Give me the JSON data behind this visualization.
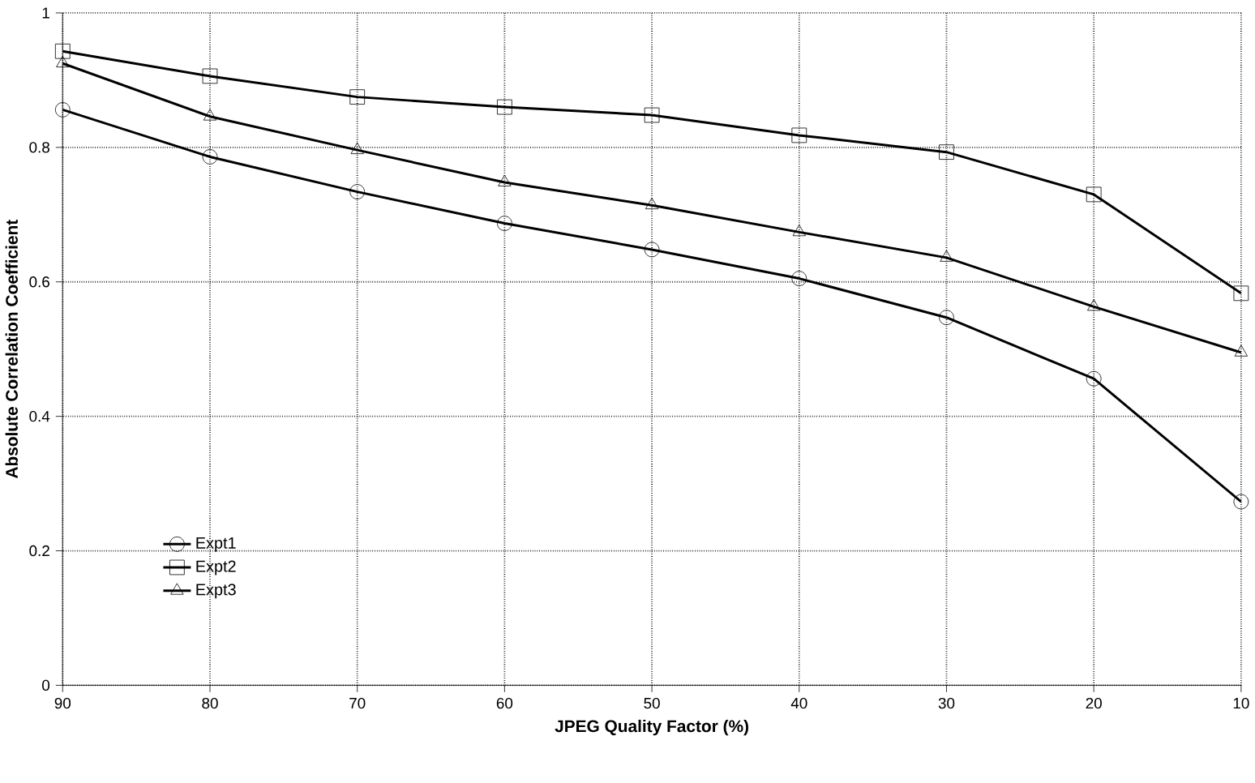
{
  "chart_data": {
    "type": "line",
    "xlabel": "JPEG Quality Factor  (%)",
    "ylabel": "Absolute Correlation Coefficient",
    "x": [
      90,
      80,
      70,
      60,
      50,
      40,
      30,
      20,
      10
    ],
    "xlim": [
      90,
      10
    ],
    "xticks": [
      90,
      80,
      70,
      60,
      50,
      40,
      30,
      20,
      10
    ],
    "ylim": [
      0,
      1
    ],
    "yticks": [
      0,
      0.2,
      0.4,
      0.6,
      0.8,
      1
    ],
    "grid": true,
    "legend": "bottom left",
    "line_style": "solid",
    "series": [
      {
        "name": "Expt1",
        "color": "#000000",
        "marker": "circle",
        "values": [
          0.856,
          0.786,
          0.734,
          0.687,
          0.648,
          0.605,
          0.547,
          0.456,
          0.273
        ]
      },
      {
        "name": "Expt2",
        "color": "#000000",
        "marker": "square",
        "values": [
          0.943,
          0.906,
          0.875,
          0.86,
          0.848,
          0.818,
          0.793,
          0.73,
          0.583
        ]
      },
      {
        "name": "Expt3",
        "color": "#000000",
        "marker": "triangle",
        "values": [
          0.925,
          0.846,
          0.796,
          0.748,
          0.714,
          0.674,
          0.636,
          0.563,
          0.495
        ]
      }
    ]
  }
}
